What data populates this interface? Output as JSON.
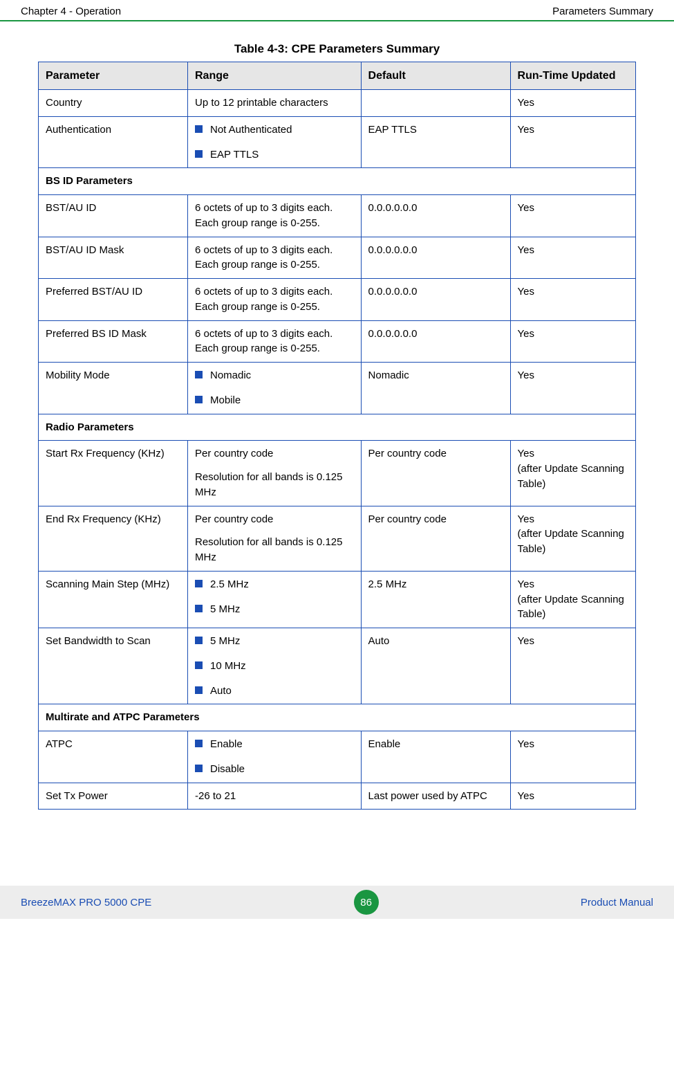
{
  "header": {
    "left": "Chapter 4 - Operation",
    "right": "Parameters Summary"
  },
  "table": {
    "caption": "Table 4-3: CPE Parameters Summary",
    "columns": [
      "Parameter",
      "Range",
      "Default",
      "Run-Time Updated"
    ],
    "rows": [
      {
        "type": "data",
        "parameter": "Country",
        "range_text": "Up to 12 printable characters",
        "default": "",
        "rtu": "Yes"
      },
      {
        "type": "data",
        "parameter": "Authentication",
        "range_list": [
          "Not Authenticated",
          "EAP TTLS"
        ],
        "default": "EAP TTLS",
        "rtu": "Yes"
      },
      {
        "type": "section",
        "label": "BS ID Parameters"
      },
      {
        "type": "data",
        "parameter": "BST/AU ID",
        "range_text": "6 octets of up to 3 digits each. Each group range is 0-255.",
        "default": "0.0.0.0.0.0",
        "rtu": "Yes"
      },
      {
        "type": "data",
        "parameter": "BST/AU ID Mask",
        "range_text": "6 octets of up to 3 digits each. Each group range is 0-255.",
        "default": "0.0.0.0.0.0",
        "rtu": "Yes"
      },
      {
        "type": "data",
        "parameter": "Preferred BST/AU ID",
        "range_text": "6 octets of up to 3 digits each. Each group range is 0-255.",
        "default": "0.0.0.0.0.0",
        "rtu": "Yes"
      },
      {
        "type": "data",
        "parameter": "Preferred BS ID Mask",
        "range_text": "6 octets of up to 3 digits each. Each group range is 0-255.",
        "default": "0.0.0.0.0.0",
        "rtu": "Yes"
      },
      {
        "type": "data",
        "parameter": "Mobility Mode",
        "range_list": [
          "Nomadic",
          "Mobile"
        ],
        "default": "Nomadic",
        "rtu": "Yes"
      },
      {
        "type": "section",
        "label": "Radio Parameters"
      },
      {
        "type": "data",
        "parameter": "Start Rx Frequency (KHz)",
        "range_paras": [
          "Per country code",
          "Resolution for all bands is 0.125 MHz"
        ],
        "default": "Per country code",
        "rtu": "Yes\n(after Update Scanning Table)"
      },
      {
        "type": "data",
        "parameter": "End Rx Frequency (KHz)",
        "range_paras": [
          "Per country code",
          "Resolution for all bands is 0.125 MHz"
        ],
        "default": "Per country code",
        "rtu": "Yes\n(after Update Scanning Table)"
      },
      {
        "type": "data",
        "parameter": "Scanning Main Step (MHz)",
        "range_list": [
          "2.5 MHz",
          "5 MHz"
        ],
        "default": "2.5 MHz",
        "rtu": "Yes\n(after Update Scanning Table)"
      },
      {
        "type": "data",
        "parameter": "Set Bandwidth to Scan",
        "range_list": [
          "5 MHz",
          "10 MHz",
          "Auto"
        ],
        "default": "Auto",
        "rtu": "Yes"
      },
      {
        "type": "section",
        "label": "Multirate and ATPC Parameters"
      },
      {
        "type": "data",
        "parameter": "ATPC",
        "range_list": [
          "Enable",
          "Disable"
        ],
        "default": "Enable",
        "rtu": "Yes"
      },
      {
        "type": "data",
        "parameter": "Set Tx Power",
        "range_text": "-26 to 21",
        "default": "Last power used by ATPC",
        "rtu": "Yes"
      }
    ]
  },
  "footer": {
    "left": "BreezeMAX PRO 5000 CPE",
    "page": "86",
    "right": "Product Manual"
  },
  "colors": {
    "border_blue": "#1a4db3",
    "header_green": "#1a9641",
    "header_gray": "#e6e6e6",
    "footer_gray": "#ededed"
  }
}
